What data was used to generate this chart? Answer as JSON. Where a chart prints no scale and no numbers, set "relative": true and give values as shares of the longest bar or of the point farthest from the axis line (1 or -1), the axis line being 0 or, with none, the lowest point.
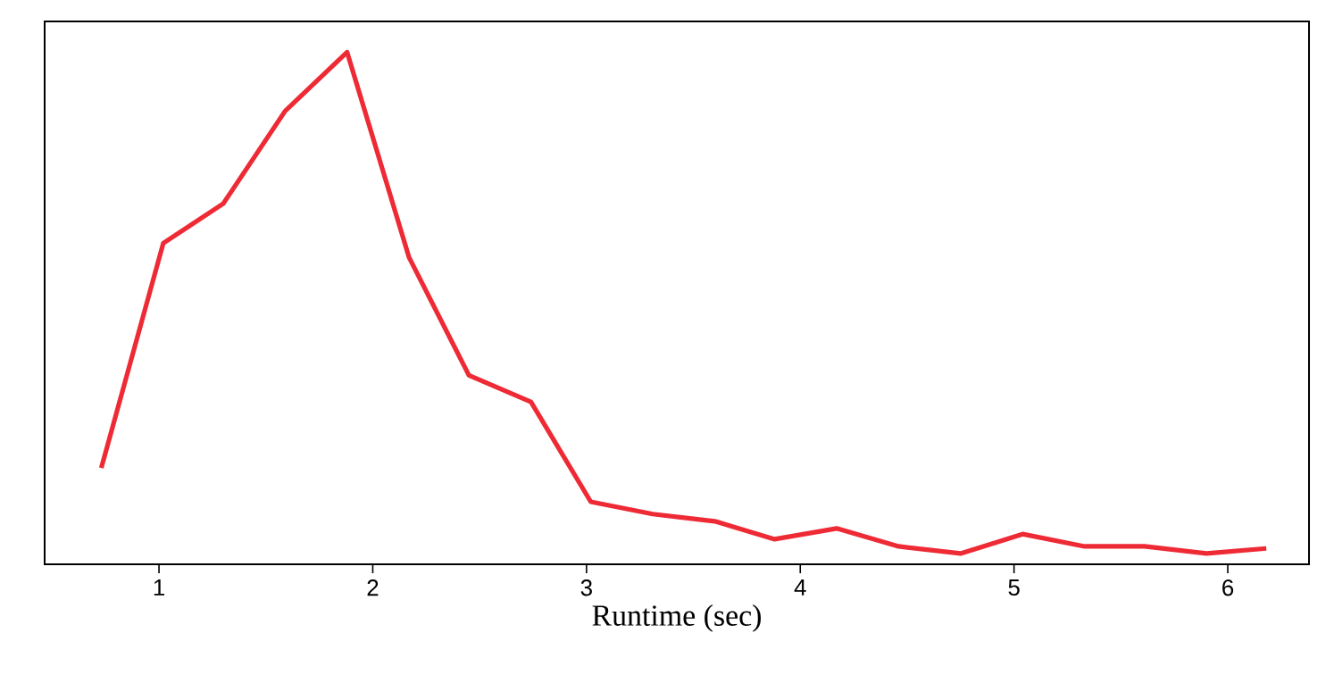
{
  "chart_data": {
    "type": "line",
    "xlabel": "Runtime (sec)",
    "relative": true,
    "x": [
      0.73,
      1.02,
      1.3,
      1.59,
      1.88,
      2.17,
      2.45,
      2.74,
      3.02,
      3.31,
      3.6,
      3.88,
      4.17,
      4.46,
      4.75,
      5.04,
      5.33,
      5.61,
      5.9,
      6.18
    ],
    "series": [
      {
        "color": "#ee2a35",
        "values": [
          0.188,
          0.627,
          0.704,
          0.885,
          1,
          0.599,
          0.369,
          0.317,
          0.122,
          0.098,
          0.084,
          0.049,
          0.07,
          0.035,
          0.021,
          0.059,
          0.035,
          0.035,
          0.021,
          0.031
        ]
      }
    ],
    "xlim": [
      0.465,
      6.38
    ],
    "xticks": [
      1,
      2,
      3,
      4,
      5,
      6
    ],
    "marker": "none",
    "line_style": "solid"
  }
}
